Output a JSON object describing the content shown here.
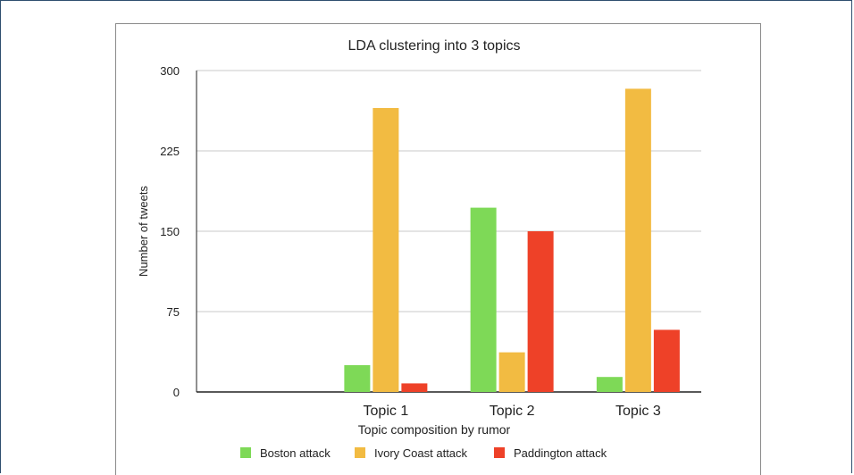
{
  "chart_data": {
    "type": "bar",
    "title": "LDA clustering into 3 topics",
    "xlabel": "Topic composition by rumor",
    "ylabel": "Number of tweets",
    "ylim": [
      0,
      300
    ],
    "yticks": [
      0,
      75,
      150,
      225,
      300
    ],
    "categories": [
      "",
      "Topic 1",
      "Topic 2",
      "Topic 3"
    ],
    "series": [
      {
        "name": "Boston attack",
        "color": "#7ed957",
        "values": [
          0,
          25,
          172,
          14
        ]
      },
      {
        "name": "Ivory Coast attack",
        "color": "#f2bb42",
        "values": [
          0,
          265,
          37,
          283
        ]
      },
      {
        "name": "Paddington attack",
        "color": "#ee4128",
        "values": [
          0,
          8,
          150,
          58
        ]
      }
    ],
    "grid": true,
    "legend_position": "bottom"
  }
}
